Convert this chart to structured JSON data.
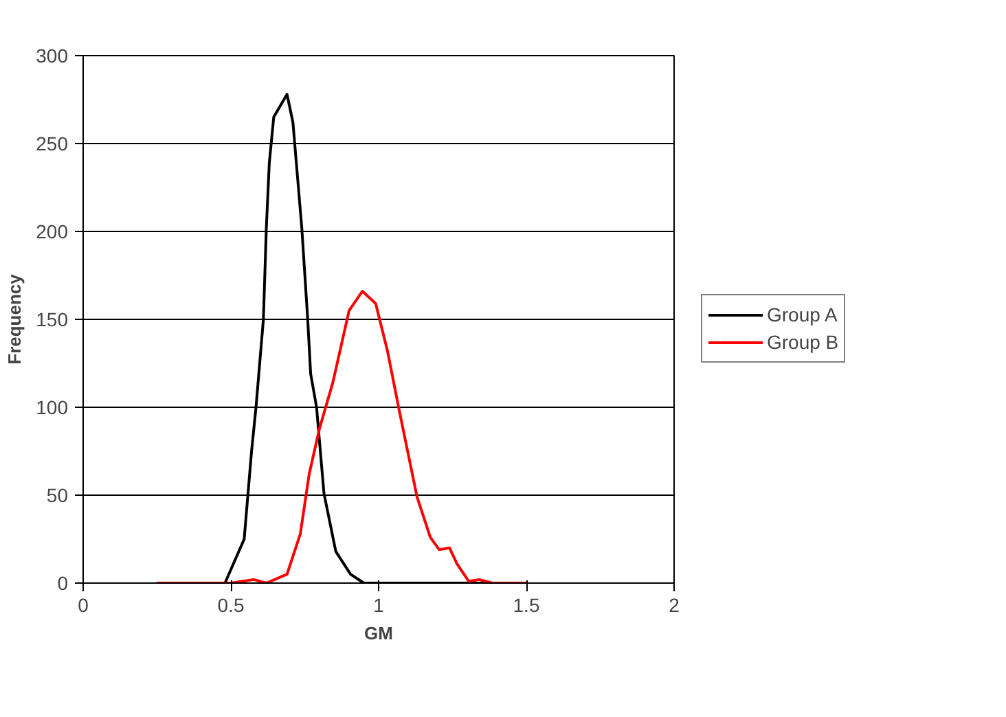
{
  "chart_data": {
    "type": "line",
    "xlabel": "GM",
    "ylabel": "Frequency",
    "xlim": [
      0,
      2
    ],
    "ylim": [
      0,
      300
    ],
    "xticks": [
      0,
      0.5,
      1,
      1.5,
      2
    ],
    "yticks": [
      0,
      50,
      100,
      150,
      200,
      250,
      300
    ],
    "grid": "y",
    "legend": "right",
    "marker": "none",
    "line_style": "solid",
    "series": [
      {
        "name": "Group A",
        "color": "#000000",
        "x": [
          0.25,
          0.4,
          0.48,
          0.545,
          0.57,
          0.585,
          0.61,
          0.62,
          0.63,
          0.645,
          0.69,
          0.71,
          0.74,
          0.76,
          0.77,
          0.79,
          0.815,
          0.855,
          0.905,
          0.95,
          1.2,
          1.5
        ],
        "values": [
          0,
          0,
          0,
          25,
          75,
          100,
          150,
          202,
          239,
          265,
          278,
          262,
          202,
          150,
          119,
          100,
          51,
          18,
          5,
          0,
          0,
          0
        ]
      },
      {
        "name": "Group B",
        "color": "#ff0000",
        "x": [
          0.25,
          0.5,
          0.577,
          0.62,
          0.69,
          0.735,
          0.765,
          0.8,
          0.845,
          0.9,
          0.945,
          0.99,
          1.03,
          1.07,
          1.13,
          1.175,
          1.205,
          1.24,
          1.265,
          1.305,
          1.34,
          1.385,
          1.5
        ],
        "values": [
          0,
          0,
          2,
          0,
          5,
          28,
          62,
          88,
          114,
          155,
          166,
          159,
          132,
          98,
          49,
          26,
          19,
          20,
          11,
          1,
          2,
          0,
          0
        ]
      }
    ]
  }
}
